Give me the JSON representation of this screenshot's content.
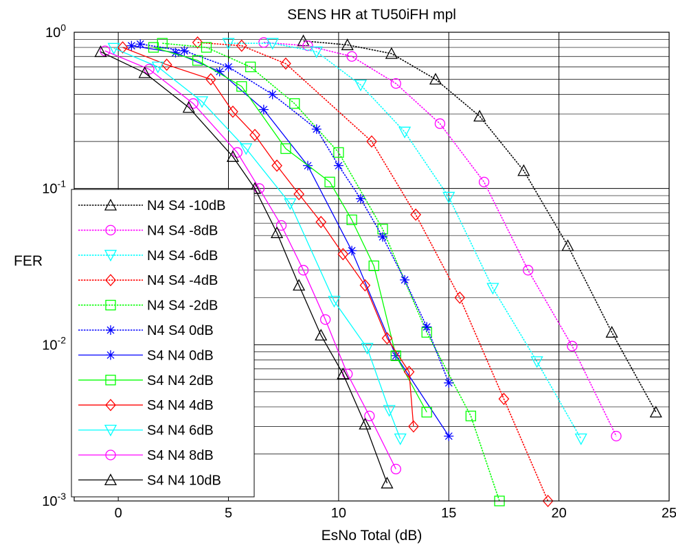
{
  "chart_data": {
    "type": "line",
    "title": "SENS HR at TU50iFH mpl",
    "xlabel": "EsNo Total (dB)",
    "ylabel": "FER",
    "xlim": [
      -2,
      25
    ],
    "ylim": [
      0.001,
      1
    ],
    "yscale": "log",
    "grid": true,
    "legend_position": "left",
    "x_ticks": [
      0,
      5,
      10,
      15,
      20,
      25
    ],
    "y_ticks": [
      {
        "value": 1,
        "base": "10",
        "exp": "0"
      },
      {
        "value": 0.1,
        "base": "10",
        "exp": "-1"
      },
      {
        "value": 0.01,
        "base": "10",
        "exp": "-2"
      },
      {
        "value": 0.001,
        "base": "10",
        "exp": "-3"
      }
    ],
    "series": [
      {
        "name": "N4 S4 -10dB",
        "color": "#000000",
        "marker": "triangle-up",
        "dashed": true,
        "points": [
          [
            8.4,
            0.88
          ],
          [
            10.4,
            0.83
          ],
          [
            12.4,
            0.73
          ],
          [
            14.4,
            0.5
          ],
          [
            16.4,
            0.29
          ],
          [
            18.4,
            0.13
          ],
          [
            20.4,
            0.043
          ],
          [
            22.4,
            0.012
          ],
          [
            24.4,
            0.0037
          ]
        ]
      },
      {
        "name": "N4 S4 -8dB",
        "color": "#ff00ff",
        "marker": "circle",
        "dashed": true,
        "points": [
          [
            6.6,
            0.86
          ],
          [
            8.6,
            0.82
          ],
          [
            10.6,
            0.7
          ],
          [
            12.6,
            0.47
          ],
          [
            14.6,
            0.26
          ],
          [
            16.6,
            0.11
          ],
          [
            18.6,
            0.03
          ],
          [
            20.6,
            0.0098
          ],
          [
            22.6,
            0.0026
          ]
        ]
      },
      {
        "name": "N4 S4 -6dB",
        "color": "#00ffff",
        "marker": "triangle-down",
        "dashed": true,
        "points": [
          [
            5,
            0.85
          ],
          [
            7,
            0.85
          ],
          [
            9,
            0.75
          ],
          [
            11,
            0.46
          ],
          [
            13,
            0.23
          ],
          [
            15,
            0.088
          ],
          [
            17,
            0.023
          ],
          [
            19,
            0.0078
          ],
          [
            21,
            0.0025
          ]
        ]
      },
      {
        "name": "N4 S4 -4dB",
        "color": "#ff0000",
        "marker": "diamond",
        "dashed": true,
        "points": [
          [
            3.6,
            0.86
          ],
          [
            5.6,
            0.82
          ],
          [
            7.6,
            0.63
          ],
          [
            11.5,
            0.2
          ],
          [
            13.5,
            0.068
          ],
          [
            15.5,
            0.02
          ],
          [
            17.5,
            0.0045
          ],
          [
            19.5,
            0.001
          ]
        ]
      },
      {
        "name": "N4 S4 -2dB",
        "color": "#00ff00",
        "marker": "square",
        "dashed": true,
        "points": [
          [
            2,
            0.85
          ],
          [
            4,
            0.8
          ],
          [
            6,
            0.6
          ],
          [
            8,
            0.35
          ],
          [
            10,
            0.17
          ],
          [
            12,
            0.055
          ],
          [
            14,
            0.012
          ],
          [
            16,
            0.0035
          ],
          [
            17.3,
            0.001
          ]
        ]
      },
      {
        "name": "N4 S4 0dB",
        "color": "#0000ff",
        "marker": "asterisk",
        "dashed": true,
        "points": [
          [
            1,
            0.84
          ],
          [
            3,
            0.76
          ],
          [
            5,
            0.6
          ],
          [
            7,
            0.4
          ],
          [
            9,
            0.24
          ],
          [
            10,
            0.14
          ],
          [
            11,
            0.086
          ],
          [
            12,
            0.049
          ],
          [
            13,
            0.026
          ],
          [
            14,
            0.013
          ],
          [
            15,
            0.0057
          ]
        ]
      },
      {
        "name": "S4 N4 0dB",
        "color": "#0000ff",
        "marker": "asterisk",
        "dashed": false,
        "points": [
          [
            0.6,
            0.82
          ],
          [
            2.6,
            0.74
          ],
          [
            4.6,
            0.56
          ],
          [
            6.6,
            0.32
          ],
          [
            8.6,
            0.14
          ],
          [
            10.6,
            0.04
          ],
          [
            12.6,
            0.0085
          ],
          [
            15,
            0.0026
          ]
        ]
      },
      {
        "name": "S4 N4 2dB",
        "color": "#00ff00",
        "marker": "square",
        "dashed": false,
        "points": [
          [
            1.6,
            0.8
          ],
          [
            3.6,
            0.66
          ],
          [
            5.6,
            0.45
          ],
          [
            7.6,
            0.18
          ],
          [
            9.6,
            0.11
          ],
          [
            10.6,
            0.063
          ],
          [
            11.6,
            0.032
          ],
          [
            12.6,
            0.0085
          ],
          [
            14,
            0.0037
          ]
        ]
      },
      {
        "name": "S4 N4 4dB",
        "color": "#ff0000",
        "marker": "diamond",
        "dashed": false,
        "points": [
          [
            0.2,
            0.8
          ],
          [
            2.2,
            0.62
          ],
          [
            4.2,
            0.5
          ],
          [
            5.2,
            0.31
          ],
          [
            6.2,
            0.22
          ],
          [
            7.2,
            0.14
          ],
          [
            8.2,
            0.092
          ],
          [
            9.2,
            0.061
          ],
          [
            10.2,
            0.038
          ],
          [
            11.2,
            0.024
          ],
          [
            12.2,
            0.011
          ],
          [
            13.2,
            0.0067
          ],
          [
            13.4,
            0.003
          ]
        ]
      },
      {
        "name": "S4 N4 6dB",
        "color": "#00ffff",
        "marker": "triangle-down",
        "dashed": false,
        "points": [
          [
            -0.2,
            0.79
          ],
          [
            1.8,
            0.6
          ],
          [
            3.8,
            0.36
          ],
          [
            5.8,
            0.18
          ],
          [
            7.8,
            0.08
          ],
          [
            9.8,
            0.019
          ],
          [
            11.3,
            0.0095
          ],
          [
            12.3,
            0.0038
          ],
          [
            12.8,
            0.0025
          ]
        ]
      },
      {
        "name": "S4 N4 8dB",
        "color": "#ff00ff",
        "marker": "circle",
        "dashed": false,
        "points": [
          [
            -0.6,
            0.76
          ],
          [
            1.4,
            0.58
          ],
          [
            3.4,
            0.35
          ],
          [
            5.4,
            0.17
          ],
          [
            6.4,
            0.1
          ],
          [
            7.4,
            0.058
          ],
          [
            8.4,
            0.03
          ],
          [
            9.4,
            0.0145
          ],
          [
            10.4,
            0.0065
          ],
          [
            11.4,
            0.0035
          ],
          [
            12.6,
            0.0016
          ]
        ]
      },
      {
        "name": "S4 N4 10dB",
        "color": "#000000",
        "marker": "triangle-up",
        "dashed": false,
        "points": [
          [
            -0.8,
            0.75
          ],
          [
            1.2,
            0.55
          ],
          [
            3.2,
            0.33
          ],
          [
            5.2,
            0.16
          ],
          [
            6.2,
            0.1
          ],
          [
            7.2,
            0.052
          ],
          [
            8.2,
            0.024
          ],
          [
            9.2,
            0.0115
          ],
          [
            10.2,
            0.0065
          ],
          [
            11.2,
            0.0031
          ],
          [
            12.2,
            0.0013
          ]
        ]
      }
    ]
  }
}
